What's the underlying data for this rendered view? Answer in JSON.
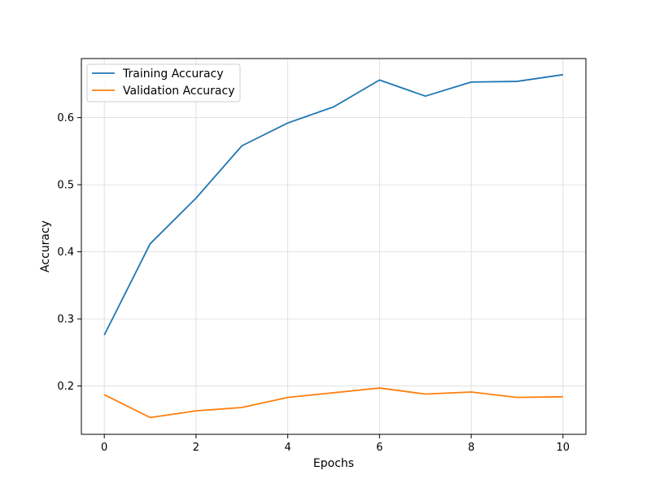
{
  "chart_data": {
    "type": "line",
    "title": "",
    "xlabel": "Epochs",
    "ylabel": "Accuracy",
    "x": [
      0,
      1,
      2,
      3,
      4,
      5,
      6,
      7,
      8,
      9,
      10
    ],
    "xlim": [
      -0.5,
      10.5
    ],
    "ylim": [
      0.128,
      0.688
    ],
    "xticks": [
      0,
      2,
      4,
      6,
      8,
      10
    ],
    "yticks": [
      0.2,
      0.3,
      0.4,
      0.5,
      0.6
    ],
    "ytick_labels": [
      "0.2",
      "0.3",
      "0.4",
      "0.5",
      "0.6"
    ],
    "grid": true,
    "legend_position": "top-left",
    "series": [
      {
        "name": "Training Accuracy",
        "color": "#1f77b4",
        "values": [
          0.276,
          0.412,
          0.48,
          0.558,
          0.592,
          0.616,
          0.656,
          0.632,
          0.653,
          0.654,
          0.664
        ]
      },
      {
        "name": "Validation Accuracy",
        "color": "#ff7f0e",
        "values": [
          0.187,
          0.153,
          0.163,
          0.168,
          0.183,
          0.19,
          0.197,
          0.188,
          0.191,
          0.183,
          0.184
        ]
      }
    ]
  }
}
